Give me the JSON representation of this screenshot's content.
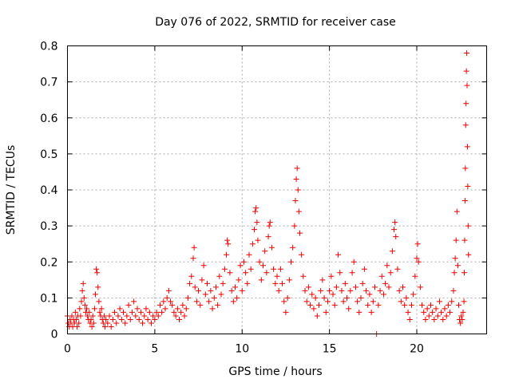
{
  "chart_data": {
    "type": "scatter",
    "title": "Day 076 of 2022, SRMTID for receiver case",
    "xlabel": "GPS time / hours",
    "ylabel": "SRMTID / TECUs",
    "xlim": [
      0,
      24
    ],
    "ylim": [
      0,
      0.8
    ],
    "xticks": [
      0,
      5,
      10,
      15,
      20
    ],
    "yticks": [
      0,
      0.1,
      0.2,
      0.3,
      0.4,
      0.5,
      0.6,
      0.7,
      0.8
    ],
    "xtick_labels": [
      "0",
      "5",
      "10",
      "15",
      "20"
    ],
    "ytick_labels": [
      "0",
      "0.1",
      "0.2",
      "0.3",
      "0.4",
      "0.5",
      "0.6",
      "0.7",
      "0.8"
    ],
    "grid": true,
    "marker": "plus",
    "marker_color": "#ee0000",
    "series": [
      {
        "name": "SRMTID",
        "points": [
          [
            0.0,
            0.05
          ],
          [
            0.05,
            0.03
          ],
          [
            0.1,
            0.02
          ],
          [
            0.15,
            0.04
          ],
          [
            0.2,
            0.03
          ],
          [
            0.25,
            0.05
          ],
          [
            0.3,
            0.02
          ],
          [
            0.35,
            0.04
          ],
          [
            0.4,
            0.03
          ],
          [
            0.45,
            0.06
          ],
          [
            0.5,
            0.04
          ],
          [
            0.55,
            0.02
          ],
          [
            0.6,
            0.05
          ],
          [
            0.65,
            0.03
          ],
          [
            0.7,
            0.07
          ],
          [
            0.75,
            0.05
          ],
          [
            0.8,
            0.09
          ],
          [
            0.85,
            0.12
          ],
          [
            0.9,
            0.14
          ],
          [
            0.95,
            0.1
          ],
          [
            1.0,
            0.08
          ],
          [
            1.05,
            0.06
          ],
          [
            1.1,
            0.07
          ],
          [
            1.15,
            0.05
          ],
          [
            1.2,
            0.04
          ],
          [
            1.25,
            0.06
          ],
          [
            1.3,
            0.03
          ],
          [
            1.35,
            0.04
          ],
          [
            1.4,
            0.02
          ],
          [
            1.45,
            0.05
          ],
          [
            1.5,
            0.03
          ],
          [
            1.55,
            0.07
          ],
          [
            1.6,
            0.11
          ],
          [
            1.65,
            0.18
          ],
          [
            1.7,
            0.17
          ],
          [
            1.75,
            0.13
          ],
          [
            1.8,
            0.09
          ],
          [
            1.85,
            0.06
          ],
          [
            1.9,
            0.05
          ],
          [
            1.95,
            0.07
          ],
          [
            2.0,
            0.04
          ],
          [
            2.05,
            0.03
          ],
          [
            2.1,
            0.05
          ],
          [
            2.15,
            0.02
          ],
          [
            2.2,
            0.04
          ],
          [
            2.3,
            0.03
          ],
          [
            2.4,
            0.05
          ],
          [
            2.5,
            0.02
          ],
          [
            2.6,
            0.04
          ],
          [
            2.7,
            0.06
          ],
          [
            2.8,
            0.03
          ],
          [
            2.9,
            0.05
          ],
          [
            3.0,
            0.07
          ],
          [
            3.1,
            0.04
          ],
          [
            3.2,
            0.06
          ],
          [
            3.3,
            0.03
          ],
          [
            3.4,
            0.05
          ],
          [
            3.5,
            0.08
          ],
          [
            3.6,
            0.04
          ],
          [
            3.7,
            0.06
          ],
          [
            3.8,
            0.09
          ],
          [
            3.9,
            0.05
          ],
          [
            4.0,
            0.07
          ],
          [
            4.1,
            0.04
          ],
          [
            4.2,
            0.06
          ],
          [
            4.3,
            0.03
          ],
          [
            4.4,
            0.05
          ],
          [
            4.5,
            0.07
          ],
          [
            4.6,
            0.04
          ],
          [
            4.7,
            0.06
          ],
          [
            4.8,
            0.03
          ],
          [
            4.9,
            0.05
          ],
          [
            5.0,
            0.04
          ],
          [
            5.1,
            0.06
          ],
          [
            5.2,
            0.05
          ],
          [
            5.3,
            0.08
          ],
          [
            5.4,
            0.06
          ],
          [
            5.5,
            0.09
          ],
          [
            5.6,
            0.07
          ],
          [
            5.7,
            0.1
          ],
          [
            5.8,
            0.12
          ],
          [
            5.9,
            0.09
          ],
          [
            6.0,
            0.08
          ],
          [
            6.1,
            0.06
          ],
          [
            6.2,
            0.05
          ],
          [
            6.3,
            0.07
          ],
          [
            6.4,
            0.04
          ],
          [
            6.5,
            0.06
          ],
          [
            6.6,
            0.08
          ],
          [
            6.7,
            0.05
          ],
          [
            6.8,
            0.07
          ],
          [
            6.9,
            0.1
          ],
          [
            7.0,
            0.14
          ],
          [
            7.1,
            0.16
          ],
          [
            7.2,
            0.21
          ],
          [
            7.25,
            0.24
          ],
          [
            7.3,
            0.13
          ],
          [
            7.4,
            0.09
          ],
          [
            7.5,
            0.12
          ],
          [
            7.6,
            0.08
          ],
          [
            7.7,
            0.15
          ],
          [
            7.8,
            0.19
          ],
          [
            7.9,
            0.11
          ],
          [
            8.0,
            0.14
          ],
          [
            8.1,
            0.09
          ],
          [
            8.2,
            0.12
          ],
          [
            8.3,
            0.07
          ],
          [
            8.4,
            0.1
          ],
          [
            8.5,
            0.13
          ],
          [
            8.6,
            0.08
          ],
          [
            8.7,
            0.16
          ],
          [
            8.8,
            0.11
          ],
          [
            8.9,
            0.14
          ],
          [
            9.0,
            0.18
          ],
          [
            9.1,
            0.22
          ],
          [
            9.15,
            0.26
          ],
          [
            9.2,
            0.25
          ],
          [
            9.3,
            0.17
          ],
          [
            9.4,
            0.12
          ],
          [
            9.5,
            0.09
          ],
          [
            9.6,
            0.13
          ],
          [
            9.7,
            0.1
          ],
          [
            9.8,
            0.15
          ],
          [
            9.9,
            0.19
          ],
          [
            10.0,
            0.12
          ],
          [
            10.1,
            0.2
          ],
          [
            10.2,
            0.17
          ],
          [
            10.3,
            0.14
          ],
          [
            10.4,
            0.22
          ],
          [
            10.5,
            0.18
          ],
          [
            10.6,
            0.25
          ],
          [
            10.7,
            0.29
          ],
          [
            10.75,
            0.34
          ],
          [
            10.8,
            0.35
          ],
          [
            10.85,
            0.31
          ],
          [
            10.9,
            0.26
          ],
          [
            11.0,
            0.2
          ],
          [
            11.1,
            0.15
          ],
          [
            11.2,
            0.19
          ],
          [
            11.3,
            0.23
          ],
          [
            11.4,
            0.17
          ],
          [
            11.5,
            0.27
          ],
          [
            11.55,
            0.3
          ],
          [
            11.6,
            0.31
          ],
          [
            11.7,
            0.24
          ],
          [
            11.8,
            0.18
          ],
          [
            11.9,
            0.14
          ],
          [
            12.0,
            0.16
          ],
          [
            12.1,
            0.12
          ],
          [
            12.2,
            0.18
          ],
          [
            12.3,
            0.14
          ],
          [
            12.4,
            0.09
          ],
          [
            12.5,
            0.06
          ],
          [
            12.6,
            0.1
          ],
          [
            12.7,
            0.15
          ],
          [
            12.8,
            0.2
          ],
          [
            12.9,
            0.24
          ],
          [
            13.0,
            0.3
          ],
          [
            13.05,
            0.37
          ],
          [
            13.1,
            0.43
          ],
          [
            13.15,
            0.46
          ],
          [
            13.2,
            0.4
          ],
          [
            13.25,
            0.34
          ],
          [
            13.3,
            0.28
          ],
          [
            13.4,
            0.22
          ],
          [
            13.5,
            0.16
          ],
          [
            13.6,
            0.12
          ],
          [
            13.7,
            0.09
          ],
          [
            13.8,
            0.13
          ],
          [
            13.9,
            0.08
          ],
          [
            14.0,
            0.11
          ],
          [
            14.1,
            0.07
          ],
          [
            14.2,
            0.1
          ],
          [
            14.3,
            0.05
          ],
          [
            14.4,
            0.08
          ],
          [
            14.5,
            0.12
          ],
          [
            14.6,
            0.15
          ],
          [
            14.7,
            0.1
          ],
          [
            14.8,
            0.06
          ],
          [
            14.9,
            0.09
          ],
          [
            15.0,
            0.12
          ],
          [
            15.1,
            0.16
          ],
          [
            15.2,
            0.11
          ],
          [
            15.3,
            0.08
          ],
          [
            15.4,
            0.13
          ],
          [
            15.5,
            0.22
          ],
          [
            15.6,
            0.17
          ],
          [
            15.7,
            0.12
          ],
          [
            15.8,
            0.09
          ],
          [
            15.9,
            0.14
          ],
          [
            16.0,
            0.1
          ],
          [
            16.1,
            0.07
          ],
          [
            16.2,
            0.12
          ],
          [
            16.3,
            0.17
          ],
          [
            16.4,
            0.2
          ],
          [
            16.5,
            0.13
          ],
          [
            16.6,
            0.09
          ],
          [
            16.7,
            0.06
          ],
          [
            16.8,
            0.1
          ],
          [
            16.9,
            0.14
          ],
          [
            17.0,
            0.18
          ],
          [
            17.1,
            0.12
          ],
          [
            17.2,
            0.08
          ],
          [
            17.3,
            0.11
          ],
          [
            17.4,
            0.06
          ],
          [
            17.5,
            0.09
          ],
          [
            17.6,
            0.13
          ],
          [
            17.7,
            0.0
          ],
          [
            17.8,
            0.08
          ],
          [
            17.9,
            0.12
          ],
          [
            18.0,
            0.16
          ],
          [
            18.1,
            0.11
          ],
          [
            18.2,
            0.14
          ],
          [
            18.3,
            0.19
          ],
          [
            18.4,
            0.13
          ],
          [
            18.5,
            0.17
          ],
          [
            18.6,
            0.23
          ],
          [
            18.7,
            0.29
          ],
          [
            18.75,
            0.31
          ],
          [
            18.8,
            0.27
          ],
          [
            18.9,
            0.18
          ],
          [
            19.0,
            0.12
          ],
          [
            19.1,
            0.09
          ],
          [
            19.2,
            0.13
          ],
          [
            19.3,
            0.08
          ],
          [
            19.4,
            0.1
          ],
          [
            19.5,
            0.06
          ],
          [
            19.6,
            0.04
          ],
          [
            19.7,
            0.08
          ],
          [
            19.8,
            0.11
          ],
          [
            19.9,
            0.16
          ],
          [
            20.0,
            0.21
          ],
          [
            20.05,
            0.25
          ],
          [
            20.1,
            0.2
          ],
          [
            20.2,
            0.13
          ],
          [
            20.3,
            0.08
          ],
          [
            20.4,
            0.06
          ],
          [
            20.5,
            0.04
          ],
          [
            20.6,
            0.07
          ],
          [
            20.7,
            0.05
          ],
          [
            20.8,
            0.08
          ],
          [
            20.9,
            0.06
          ],
          [
            21.0,
            0.04
          ],
          [
            21.1,
            0.07
          ],
          [
            21.2,
            0.05
          ],
          [
            21.3,
            0.09
          ],
          [
            21.4,
            0.06
          ],
          [
            21.5,
            0.04
          ],
          [
            21.6,
            0.07
          ],
          [
            21.7,
            0.05
          ],
          [
            21.8,
            0.08
          ],
          [
            21.9,
            0.06
          ],
          [
            22.0,
            0.09
          ],
          [
            22.1,
            0.12
          ],
          [
            22.15,
            0.17
          ],
          [
            22.2,
            0.21
          ],
          [
            22.25,
            0.26
          ],
          [
            22.3,
            0.34
          ],
          [
            22.35,
            0.19
          ],
          [
            22.4,
            0.08
          ],
          [
            22.45,
            0.04
          ],
          [
            22.5,
            0.03
          ],
          [
            22.55,
            0.05
          ],
          [
            22.6,
            0.04
          ],
          [
            22.65,
            0.06
          ],
          [
            22.7,
            0.09
          ],
          [
            22.72,
            0.17
          ],
          [
            22.74,
            0.26
          ],
          [
            22.76,
            0.37
          ],
          [
            22.78,
            0.46
          ],
          [
            22.8,
            0.58
          ],
          [
            22.82,
            0.64
          ],
          [
            22.84,
            0.73
          ],
          [
            22.86,
            0.78
          ],
          [
            22.88,
            0.69
          ],
          [
            22.9,
            0.52
          ],
          [
            22.92,
            0.41
          ],
          [
            22.94,
            0.3
          ],
          [
            22.96,
            0.22
          ]
        ]
      }
    ]
  }
}
